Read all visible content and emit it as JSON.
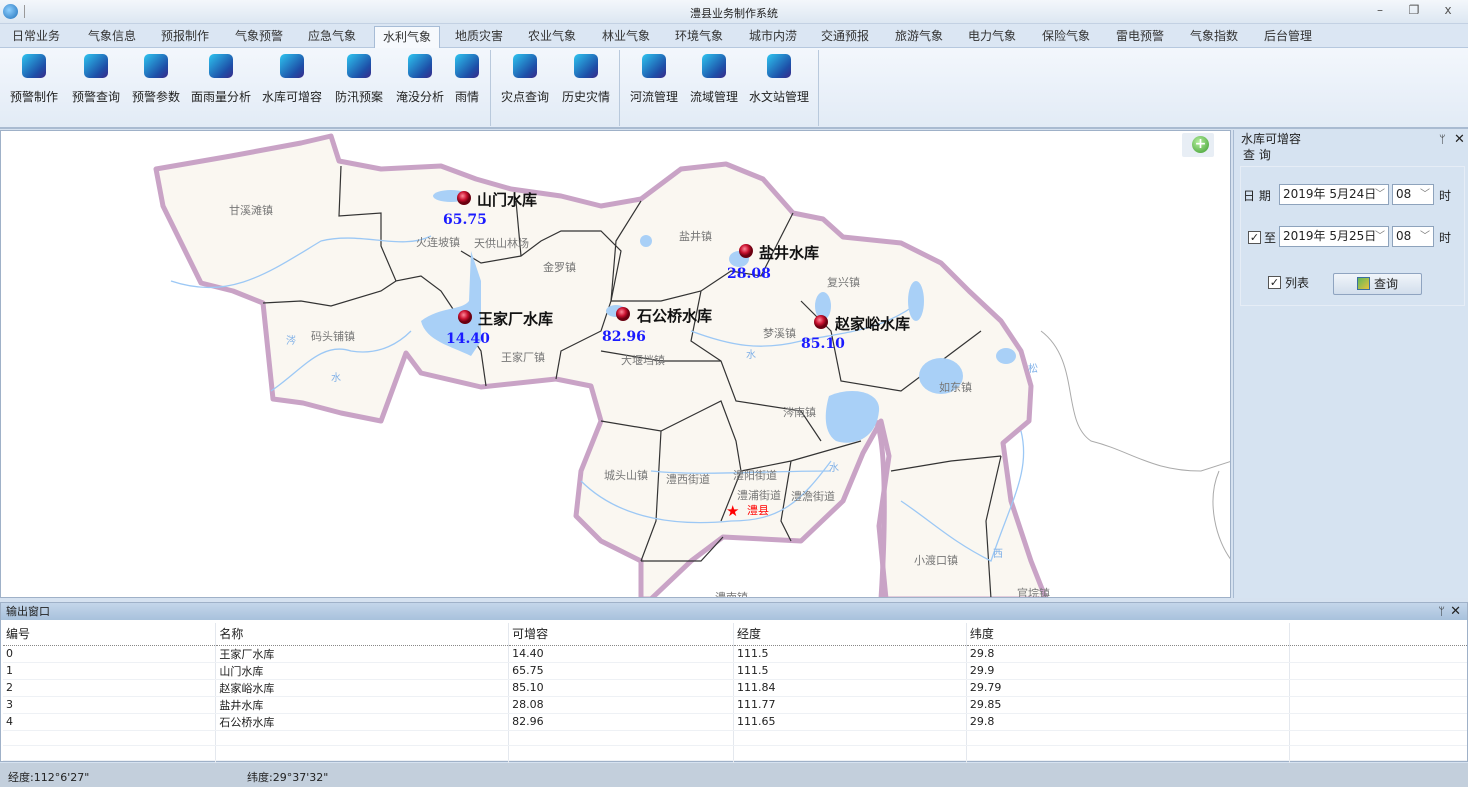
{
  "window": {
    "title": "澧县业务制作系统",
    "minimize": "–",
    "restore": "❐",
    "close": "x"
  },
  "tabs": [
    "日常业务",
    "气象信息",
    "预报制作",
    "气象预警",
    "应急气象",
    "水利气象",
    "地质灾害",
    "农业气象",
    "林业气象",
    "环境气象",
    "城市内涝",
    "交通预报",
    "旅游气象",
    "电力气象",
    "保险气象",
    "雷电预警",
    "气象指数",
    "后台管理"
  ],
  "active_tab": "水利气象",
  "ribbon": [
    {
      "label": "预警制作",
      "icon": "warning-make-icon"
    },
    {
      "label": "预警查询",
      "icon": "warning-search-icon"
    },
    {
      "label": "预警参数",
      "icon": "warning-params-icon"
    },
    {
      "label": "面雨量分析",
      "icon": "areal-rainfall-icon"
    },
    {
      "label": "水库可增容",
      "icon": "reservoir-capacity-icon"
    },
    {
      "label": "防汛预案",
      "icon": "flood-plan-icon"
    },
    {
      "label": "淹没分析",
      "icon": "inundation-icon"
    },
    {
      "label": "雨情",
      "icon": "rain-drops-icon"
    },
    {
      "label": "灾点查询",
      "icon": "disaster-search-icon"
    },
    {
      "label": "历史灾情",
      "icon": "history-disaster-icon"
    },
    {
      "label": "河流管理",
      "icon": "river-icon"
    },
    {
      "label": "流域管理",
      "icon": "basin-icon"
    },
    {
      "label": "水文站管理",
      "icon": "hydro-station-icon"
    }
  ],
  "map": {
    "reservoirs": [
      {
        "name": "山门水库",
        "value": "65.75"
      },
      {
        "name": "盐井水库",
        "value": "28.08"
      },
      {
        "name": "王家厂水库",
        "value": "14.40"
      },
      {
        "name": "石公桥水库",
        "value": "82.96"
      },
      {
        "name": "赵家峪水库",
        "value": "85.10"
      }
    ],
    "towns": [
      "甘溪滩镇",
      "火连坡镇",
      "天供山林场",
      "金罗镇",
      "盐井镇",
      "复兴镇",
      "码头铺镇",
      "王家厂镇",
      "梦溪镇",
      "大堰垱镇",
      "涔南镇",
      "如东镇",
      "城头山镇",
      "澧西街道",
      "澧阳街道",
      "澧浦街道",
      "澧澹街道",
      "小渡口镇",
      "官垸镇",
      "澧南镇"
    ],
    "county_seat": "澧县",
    "river_chars": [
      "涔",
      "水",
      "澹",
      "水",
      "水",
      "水",
      "松",
      "西",
      "澧"
    ],
    "zoom_in": "+"
  },
  "side_panel": {
    "title": "水库可增容",
    "subtitle": "查 询",
    "pin": "ᛘ",
    "close": "✕",
    "date_label": "日 期",
    "start_date": "2019年  5月24日",
    "start_hour": "08",
    "to_label": "至",
    "to_checked": true,
    "end_date": "2019年  5月25日",
    "end_hour": "08",
    "hour_unit": "时",
    "list_label": "列表",
    "list_checked": true,
    "query_button": "查询",
    "chevron": "﹀"
  },
  "output": {
    "title": "输出窗口",
    "columns": [
      "编号",
      "名称",
      "可增容",
      "经度",
      "纬度"
    ],
    "rows": [
      [
        "0",
        "王家厂水库",
        "14.40",
        "111.5",
        "29.8"
      ],
      [
        "1",
        "山门水库",
        "65.75",
        "111.5",
        "29.9"
      ],
      [
        "2",
        "赵家峪水库",
        "85.10",
        "111.84",
        "29.79"
      ],
      [
        "3",
        "盐井水库",
        "28.08",
        "111.77",
        "29.85"
      ],
      [
        "4",
        "石公桥水库",
        "82.96",
        "111.65",
        "29.8"
      ]
    ]
  },
  "status": {
    "lon": "经度:112°6'27\"",
    "lat": "纬度:29°37'32\""
  }
}
